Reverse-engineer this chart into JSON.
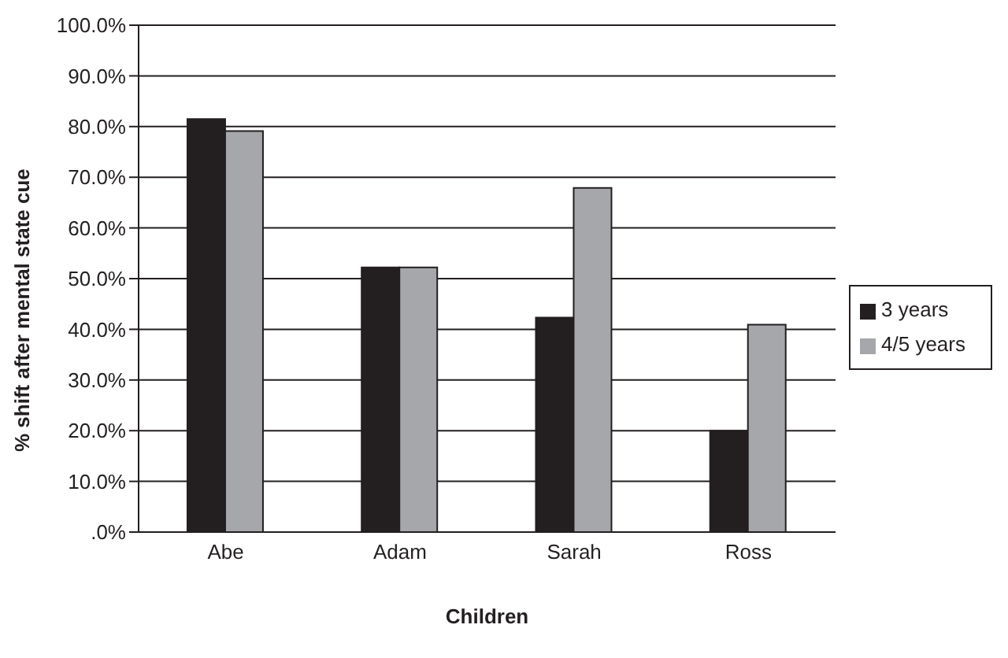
{
  "chart_data": {
    "type": "bar",
    "xlabel": "Children",
    "ylabel": "% shift after mental state cue",
    "categories": [
      "Abe",
      "Adam",
      "Sarah",
      "Ross"
    ],
    "series": [
      {
        "name": "3 years",
        "color": "#231f20",
        "values": [
          81.5,
          52.2,
          42.3,
          20.0
        ]
      },
      {
        "name": "4/5 years",
        "color": "#a6a7aa",
        "values": [
          79.1,
          52.2,
          67.9,
          40.9
        ]
      }
    ],
    "ylim": [
      0,
      100
    ],
    "yticks": [
      {
        "value": 0,
        "label": ".0%"
      },
      {
        "value": 10,
        "label": "10.0%"
      },
      {
        "value": 20,
        "label": "20.0%"
      },
      {
        "value": 30,
        "label": "30.0%"
      },
      {
        "value": 40,
        "label": "40.0%"
      },
      {
        "value": 50,
        "label": "50.0%"
      },
      {
        "value": 60,
        "label": "60.0%"
      },
      {
        "value": 70,
        "label": "70.0%"
      },
      {
        "value": 80,
        "label": "80.0%"
      },
      {
        "value": 90,
        "label": "90.0%"
      },
      {
        "value": 100,
        "label": "100.0%"
      }
    ],
    "grid": "y",
    "legend": "right"
  }
}
